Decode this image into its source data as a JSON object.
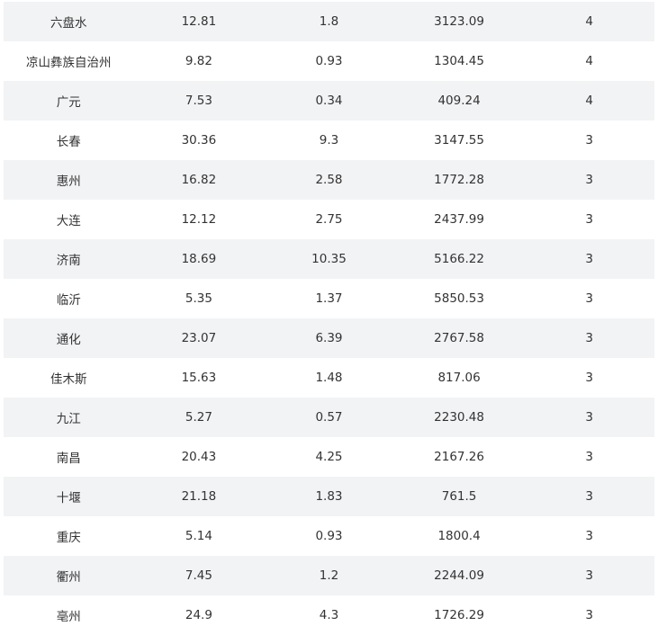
{
  "colors": {
    "stripe": "#f2f3f5",
    "text": "#333333"
  },
  "rows": [
    [
      "六盘水",
      "12.81",
      "1.8",
      "3123.09",
      "4"
    ],
    [
      "凉山彝族自治州",
      "9.82",
      "0.93",
      "1304.45",
      "4"
    ],
    [
      "广元",
      "7.53",
      "0.34",
      "409.24",
      "4"
    ],
    [
      "长春",
      "30.36",
      "9.3",
      "3147.55",
      "3"
    ],
    [
      "惠州",
      "16.82",
      "2.58",
      "1772.28",
      "3"
    ],
    [
      "大连",
      "12.12",
      "2.75",
      "2437.99",
      "3"
    ],
    [
      "济南",
      "18.69",
      "10.35",
      "5166.22",
      "3"
    ],
    [
      "临沂",
      "5.35",
      "1.37",
      "5850.53",
      "3"
    ],
    [
      "通化",
      "23.07",
      "6.39",
      "2767.58",
      "3"
    ],
    [
      "佳木斯",
      "15.63",
      "1.48",
      "817.06",
      "3"
    ],
    [
      "九江",
      "5.27",
      "0.57",
      "2230.48",
      "3"
    ],
    [
      "南昌",
      "20.43",
      "4.25",
      "2167.26",
      "3"
    ],
    [
      "十堰",
      "21.18",
      "1.83",
      "761.5",
      "3"
    ],
    [
      "重庆",
      "5.14",
      "0.93",
      "1800.4",
      "3"
    ],
    [
      "衢州",
      "7.45",
      "1.2",
      "2244.09",
      "3"
    ],
    [
      "亳州",
      "24.9",
      "4.3",
      "1726.29",
      "3"
    ]
  ]
}
